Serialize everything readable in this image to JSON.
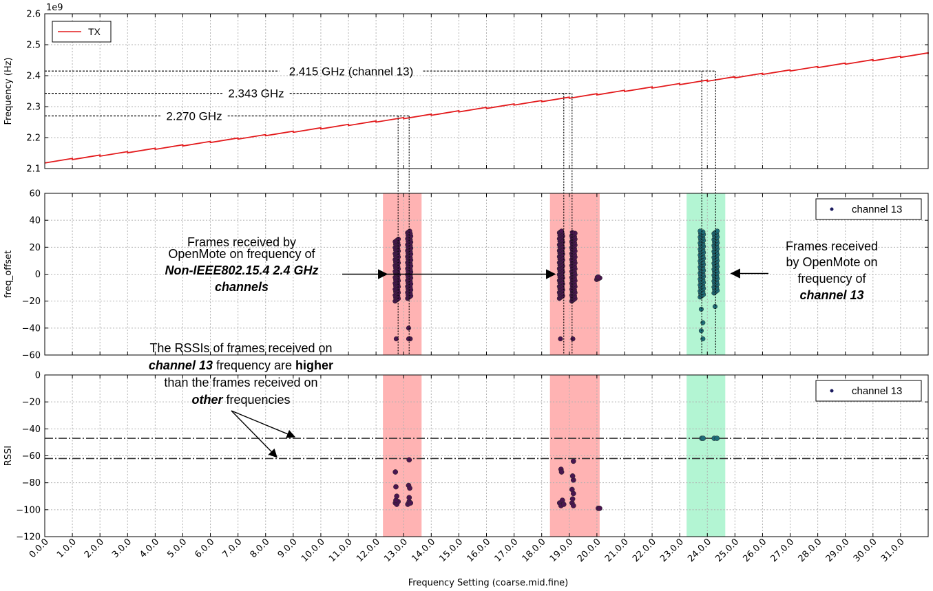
{
  "figure": {
    "xlabel": "Frequency Setting (coarse.mid.fine)",
    "x_tick_labels": [
      "0.0.0",
      "1.0.0",
      "2.0.0",
      "3.0.0",
      "4.0.0",
      "5.0.0",
      "6.0.0",
      "7.0.0",
      "8.0.0",
      "9.0.0",
      "10.0.0",
      "11.0.0",
      "12.0.0",
      "13.0.0",
      "14.0.0",
      "15.0.0",
      "16.0.0",
      "17.0.0",
      "18.0.0",
      "19.0.0",
      "20.0.0",
      "21.0.0",
      "22.0.0",
      "23.0.0",
      "24.0.0",
      "25.0.0",
      "26.0.0",
      "27.0.0",
      "28.0.0",
      "29.0.0",
      "30.0.0",
      "31.0.0"
    ]
  },
  "colors": {
    "tx_line": "#e31a1c",
    "scatter_fill": "#4a1650",
    "scatter_fill_ch13": "#1e6e7a",
    "red_span": "#ffb3b3",
    "green_span": "#b3f5d3",
    "grid": "#b0b0b0"
  },
  "chart_data": [
    {
      "type": "line",
      "title": "",
      "ylabel": "Frequency (Hz)",
      "offset_text": "1e9",
      "xlim": [
        0,
        32
      ],
      "ylim": [
        2.1,
        2.6
      ],
      "y_ticks": [
        "2.1",
        "2.2",
        "2.3",
        "2.4",
        "2.5",
        "2.6"
      ],
      "legend": "top-left",
      "series": [
        {
          "name": "TX",
          "description": "sawtooth: 32 coarse segments, each rising ~0.0147 GHz, dropping ~0.0037 GHz at coarse boundaries",
          "start": 2.118,
          "segment_rise": 0.0147,
          "step_drop": 0.0037,
          "segments": 32
        }
      ],
      "annotations": [
        {
          "text": "2.270 GHz",
          "y": 2.27,
          "x_markers": [
            12.8,
            13.2
          ]
        },
        {
          "text": "2.343 GHz",
          "y": 2.343,
          "x_markers": [
            18.8,
            19.1
          ]
        },
        {
          "text": "2.415 GHz (channel 13)",
          "y": 2.415,
          "x_markers": [
            23.8,
            24.3
          ]
        }
      ]
    },
    {
      "type": "scatter",
      "title": "",
      "ylabel": "freq_offset",
      "ylim": [
        -60,
        60
      ],
      "y_ticks": [
        "−60",
        "−40",
        "−20",
        "0",
        "20",
        "40",
        "60"
      ],
      "legend": "top-right",
      "series": [
        {
          "name": "channel 13"
        }
      ],
      "clusters": [
        {
          "x": 12.75,
          "y_min": -20,
          "y_max": 26,
          "outliers": [
            -48
          ],
          "group": "other"
        },
        {
          "x": 13.2,
          "y_min": -18,
          "y_max": 32,
          "outliers": [
            -40,
            -48,
            -48
          ],
          "group": "other"
        },
        {
          "x": 18.7,
          "y_min": -18,
          "y_max": 32,
          "outliers": [
            -48
          ],
          "group": "other"
        },
        {
          "x": 19.15,
          "y_min": -20,
          "y_max": 31,
          "outliers": [
            -48
          ],
          "group": "other"
        },
        {
          "x": 20.05,
          "y_min": -4,
          "y_max": -2,
          "outliers": [],
          "group": "other"
        },
        {
          "x": 23.8,
          "y_min": -17,
          "y_max": 32,
          "outliers": [
            -26,
            -36,
            -42,
            -48
          ],
          "group": "channel13"
        },
        {
          "x": 24.3,
          "y_min": -14,
          "y_max": 32,
          "outliers": [
            -24
          ],
          "group": "channel13"
        }
      ],
      "annotations": [
        {
          "text_lines": [
            "Frames received by",
            "OpenMote on frequency of",
            "Non-IEEE802.15.4 2.4 GHz",
            "channels"
          ]
        },
        {
          "text_lines": [
            "Frames received",
            "by OpenMote on",
            "frequency of",
            "channel 13"
          ]
        }
      ]
    },
    {
      "type": "scatter",
      "title": "",
      "ylabel": "RSSI",
      "ylim": [
        -120,
        0
      ],
      "y_ticks": [
        "−120",
        "−100",
        "−80",
        "−60",
        "−40",
        "−20",
        "0"
      ],
      "legend": "top-right",
      "series": [
        {
          "name": "channel 13"
        }
      ],
      "hlines": [
        -47,
        -62
      ],
      "points": [
        {
          "x": 12.7,
          "y": -95
        },
        {
          "x": 12.75,
          "y": -96
        },
        {
          "x": 12.8,
          "y": -94
        },
        {
          "x": 12.72,
          "y": -93
        },
        {
          "x": 12.7,
          "y": -72
        },
        {
          "x": 12.72,
          "y": -83
        },
        {
          "x": 12.75,
          "y": -90
        },
        {
          "x": 13.15,
          "y": -96
        },
        {
          "x": 13.2,
          "y": -94
        },
        {
          "x": 13.25,
          "y": -95
        },
        {
          "x": 13.2,
          "y": -91
        },
        {
          "x": 13.2,
          "y": -63
        },
        {
          "x": 13.18,
          "y": -82
        },
        {
          "x": 13.22,
          "y": -84
        },
        {
          "x": 18.65,
          "y": -95
        },
        {
          "x": 18.7,
          "y": -97
        },
        {
          "x": 18.75,
          "y": -93
        },
        {
          "x": 18.8,
          "y": -96
        },
        {
          "x": 18.7,
          "y": -70
        },
        {
          "x": 18.72,
          "y": -72
        },
        {
          "x": 19.1,
          "y": -95
        },
        {
          "x": 19.15,
          "y": -97
        },
        {
          "x": 19.12,
          "y": -92
        },
        {
          "x": 19.15,
          "y": -88
        },
        {
          "x": 19.1,
          "y": -85
        },
        {
          "x": 19.15,
          "y": -78
        },
        {
          "x": 19.12,
          "y": -75
        },
        {
          "x": 19.15,
          "y": -64
        },
        {
          "x": 20.05,
          "y": -99
        },
        {
          "x": 20.1,
          "y": -99
        },
        {
          "x": 23.8,
          "y": -47,
          "group": "channel13"
        },
        {
          "x": 23.85,
          "y": -47,
          "group": "channel13"
        },
        {
          "x": 24.25,
          "y": -47,
          "group": "channel13"
        },
        {
          "x": 24.35,
          "y": -47,
          "group": "channel13"
        }
      ],
      "annotation": {
        "parts": [
          [
            {
              "t": "The RSSIs of frames received on",
              "b": false
            }
          ],
          [
            {
              "t": "channel 13",
              "b": true,
              "i": true
            },
            {
              "t": " frequency are ",
              "b": false
            },
            {
              "t": "higher",
              "b": true
            }
          ],
          [
            {
              "t": "than the frames received on",
              "b": false
            }
          ],
          [
            {
              "t": "other",
              "b": true,
              "i": true
            },
            {
              "t": " frequencies",
              "b": false
            }
          ]
        ]
      }
    }
  ]
}
